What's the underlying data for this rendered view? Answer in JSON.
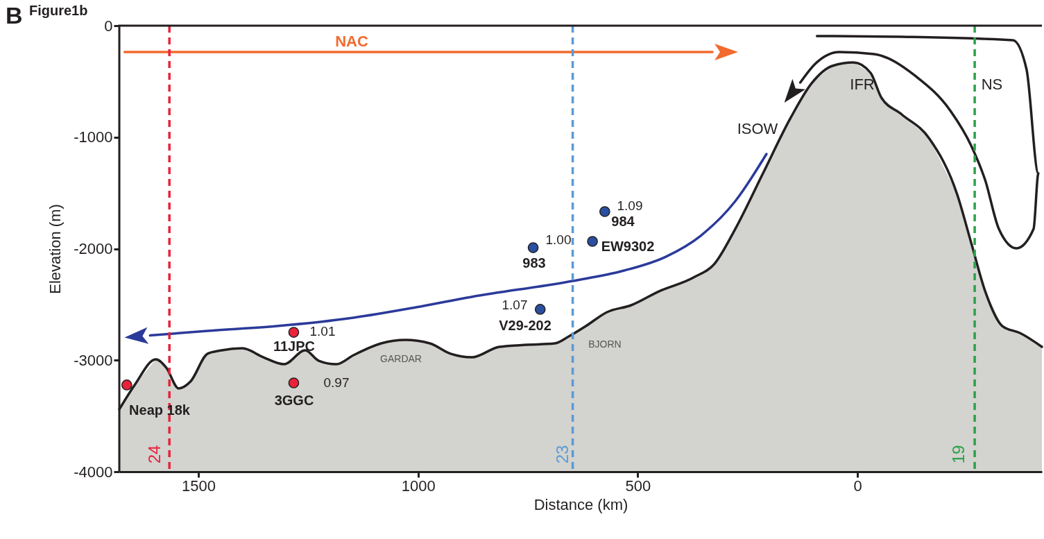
{
  "chart_data": {
    "type": "line",
    "title": "Figure1b",
    "xlabel": "Distance (km)",
    "ylabel": "Elevation (m)",
    "xlim": [
      1680,
      -420
    ],
    "ylim": [
      -4000,
      0
    ],
    "xticks": [
      1500,
      1000,
      500,
      0
    ],
    "line_style": "solid",
    "yticks": [
      0,
      -1000,
      -2000,
      -3000,
      -4000
    ],
    "series": [
      {
        "color": "#231f20",
        "x": [
          1680,
          1645,
          1597,
          1573,
          1545,
          1518,
          1479,
          1447,
          1400,
          1352,
          1305,
          1257,
          1226,
          1186,
          1147,
          1084,
          1029,
          973,
          926,
          878,
          815,
          752,
          689,
          657,
          618,
          570,
          515,
          452,
          373,
          325,
          278,
          215,
          152,
          104,
          57,
          9,
          -30,
          -54,
          -101,
          -164,
          -227,
          -259,
          -291,
          -330,
          -370,
          -420
        ],
        "values": [
          -3440,
          -3222,
          -2992,
          -3067,
          -3253,
          -3191,
          -2942,
          -2911,
          -2893,
          -2974,
          -3036,
          -2911,
          -3005,
          -3036,
          -2955,
          -2849,
          -2818,
          -2849,
          -2942,
          -2974,
          -2880,
          -2862,
          -2849,
          -2787,
          -2694,
          -2569,
          -2507,
          -2383,
          -2258,
          -2134,
          -1823,
          -1325,
          -827,
          -516,
          -361,
          -330,
          -423,
          -641,
          -796,
          -1014,
          -1512,
          -1947,
          -2383,
          -2694,
          -2756,
          -2880
        ]
      },
      {
        "color": "#f26a2e",
        "x": [
          1668,
          330
        ],
        "values": [
          -236,
          -236
        ]
      },
      {
        "color": "#2b3a9a",
        "x": [
          207,
          278,
          357,
          436,
          531,
          648,
          878,
          1005,
          1147,
          1321,
          1479,
          1610
        ],
        "values": [
          -1151,
          -1574,
          -1885,
          -2072,
          -2196,
          -2289,
          -2432,
          -2526,
          -2619,
          -2694,
          -2737,
          -2778
        ]
      },
      {
        "color": "#231f20",
        "x": [
          92,
          -101,
          -354,
          -385,
          -412,
          -401,
          -362,
          -322,
          -291,
          -259,
          -212,
          -133,
          -38,
          41,
          96,
          130
        ],
        "values": [
          -93,
          -100,
          -131,
          -392,
          -1325,
          -1823,
          -1997,
          -1823,
          -1387,
          -1076,
          -765,
          -454,
          -255,
          -236,
          -342,
          -510
        ]
      },
      {
        "type": "scatter",
        "marker": "circle",
        "color": "#e8233a",
        "x": [
          1663,
          1283,
          1283
        ],
        "values": [
          -3222,
          -2750,
          -3204
        ]
      },
      {
        "type": "scatter",
        "marker": "circle",
        "color": "#2a4fa0",
        "x": [
          738,
          575,
          603,
          722
        ],
        "values": [
          -1991,
          -1667,
          -1935,
          -2544
        ]
      }
    ],
    "ref_lines": [
      {
        "axis": "x",
        "value": 1566,
        "color": "#e8233a",
        "line_style": "dashed"
      },
      {
        "axis": "x",
        "value": 648,
        "color": "#5b9bd5",
        "line_style": "dashed"
      },
      {
        "axis": "x",
        "value": -267,
        "color": "#2ca24a",
        "line_style": "dashed"
      }
    ],
    "annotations": [
      "B",
      "Neap 18k",
      "11JPC",
      "1.01",
      "3GGC",
      "0.97",
      "983",
      "1.00",
      "984",
      "1.09",
      "EW9302",
      "1.07",
      "V29-202",
      "NAC",
      "ISOW",
      "IFR",
      "NS",
      "GARDAR",
      "BJORN",
      "24",
      "23",
      "19"
    ]
  }
}
